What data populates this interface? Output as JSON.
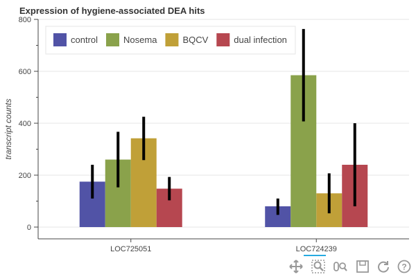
{
  "chart_data": {
    "type": "bar",
    "title": "Expression of hygiene-associated DEA hits",
    "xlabel": "",
    "ylabel": "transcript counts",
    "ylim": [
      0,
      800
    ],
    "yticks": [
      "0",
      "200",
      "400",
      "600",
      "800"
    ],
    "categories": [
      "LOC725051",
      "LOC724239"
    ],
    "series": [
      {
        "name": "control",
        "color": "#5153a6",
        "values": [
          175,
          80
        ],
        "err_low": [
          110,
          47
        ],
        "err_high": [
          240,
          110
        ]
      },
      {
        "name": "Nosema",
        "color": "#8aa24b",
        "values": [
          260,
          585
        ],
        "err_low": [
          153,
          407
        ],
        "err_high": [
          367,
          763
        ]
      },
      {
        "name": "BQCV",
        "color": "#c0a038",
        "values": [
          342,
          130
        ],
        "err_low": [
          258,
          53
        ],
        "err_high": [
          425,
          207
        ]
      },
      {
        "name": "dual infection",
        "color": "#b64750",
        "values": [
          148,
          240
        ],
        "err_low": [
          103,
          80
        ],
        "err_high": [
          193,
          400
        ]
      }
    ],
    "grid": true,
    "legend_position": "top-left"
  },
  "toolbar": {
    "tools": [
      "pan-icon",
      "box-zoom-icon",
      "wheel-zoom-icon",
      "save-icon",
      "reset-icon",
      "help-icon"
    ]
  }
}
